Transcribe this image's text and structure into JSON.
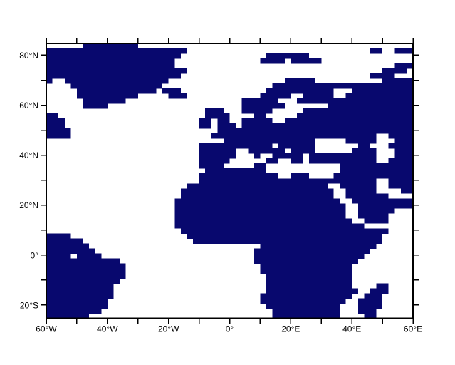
{
  "figure": {
    "background": "#ffffff",
    "frame_color": "#000000",
    "land_color": "#08086e",
    "sea_color": "#ffffff"
  },
  "x_axis": {
    "minor_tick_interval_deg": 10,
    "major_ticks": [
      {
        "lon": -60,
        "label": "60°W"
      },
      {
        "lon": -40,
        "label": "40°W"
      },
      {
        "lon": -20,
        "label": "20°W"
      },
      {
        "lon": 0,
        "label": "0°"
      },
      {
        "lon": 20,
        "label": "20°E"
      },
      {
        "lon": 40,
        "label": "40°E"
      },
      {
        "lon": 60,
        "label": "60°E"
      }
    ]
  },
  "y_axis": {
    "minor_tick_interval_deg": 10,
    "major_ticks": [
      {
        "lat": 80,
        "label": "80°N"
      },
      {
        "lat": 60,
        "label": "60°N"
      },
      {
        "lat": 40,
        "label": "40°N"
      },
      {
        "lat": 20,
        "label": "20°N"
      },
      {
        "lat": 0,
        "label": "0°"
      },
      {
        "lat": -20,
        "label": "20°S"
      }
    ]
  },
  "chart_data": {
    "type": "heatmap",
    "description": "Land-sea mask map: navy = land, white = ocean. Shows Greenland, Iceland, Svalbard, Novaya Zemlya, Europe, Labrador, South America, Africa, Arabia, Madagascar.",
    "lon_range": [
      -60,
      60
    ],
    "lat_range": [
      -25.3,
      84.7
    ],
    "cell_size_deg": 2,
    "grid_cols": 60,
    "grid_rows": 55,
    "land_symbol": "#",
    "sea_symbol": ".",
    "land_rows": [
      "......#########.............................................",
      "#######################..............................##..###",
      "######################..............#######.................",
      "#####################..............####.#####...............",
      "#####################....................................###",
      "#######################................................####.",
      "######################...............................####...",
      "#..#################...................#####...........#####",
      "....###############..................#######################",
      ".....#############.###..............###########...##########",
      ".....##########.....###............#####..#####..###########",
      "......#######...................######...###################",
      "......####......................#######.......##############",
      "..........................###...#####.....##################",
      "##........................####....##.....###################",
      "###......................##.##..#####..#####################",
      "###......................##.###.############################",
      "####........................################################",
      "####.......................###########################..####",
      ".............................###############.....#####...###",
      ".........................############.######.......##...####",
      ".........................######..######.####......####...###",
      ".........................######...#..#####.###########...###",
      ".........................#####......##..##.###########..####",
      ".........................####.....##............############",
      "..........................##########............############",
      ".........................#############..###....#############",
      ".........................#############################..####",
      ".......................#######################..######..####",
      "......................#########################..#####....##",
      "......................#########################..#######....",
      ".....................###########################..##########",
      ".....................############################..#########",
      ".....................############################..######...",
      ".....................############################..#####....",
      ".....................#############################..####....",
      ".....................###############################........",
      "......................##################################....",
      "####...................################################.....",
      "######..................###############################.....",
      "#######............................###################......",
      "########..........................###################.......",
      "####.####.........................##################........",
      "############......................#################.........",
      "#############......................###############..........",
      "#############......................###############..........",
      "#############.......................##############..........",
      "############........................##############..........",
      "###########.........................##############....##....",
      "###########.........................###############..###....",
      "###########........................###############..###.....",
      "##########.........................##############..####.....",
      "##########..........................############...####.....",
      "#########............................###########...###......",
      "#######..............................###########....##......"
    ]
  }
}
